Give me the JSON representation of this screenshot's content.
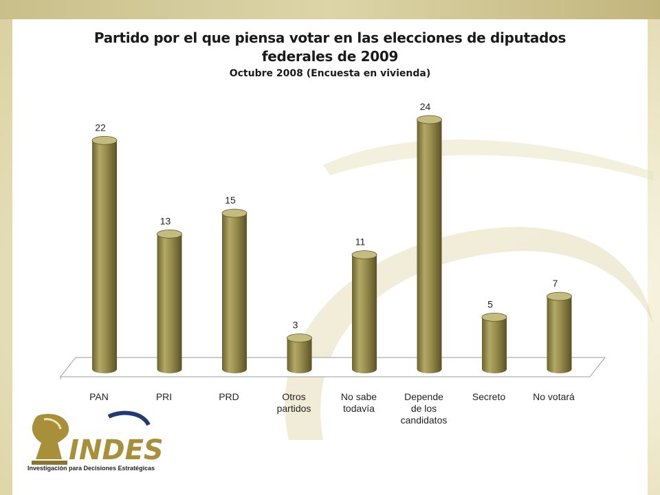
{
  "header": {
    "title": "Partido por el que piensa votar en las elecciones de diputados federales de 2009",
    "subtitle": "Octubre 2008 (Encuesta en vivienda)"
  },
  "logo": {
    "name": "INDES",
    "tagline": "Investigación para Decisiones Estratégicas"
  },
  "colors": {
    "bar": "#9a8f4e",
    "bar_dark": "#5d5427",
    "bar_light": "#c4bb7e",
    "logo_gold": "#a8903a",
    "logo_blue": "#1f3b73"
  },
  "chart_data": {
    "type": "bar",
    "categories": [
      [
        "PAN"
      ],
      [
        "PRI"
      ],
      [
        "PRD"
      ],
      [
        "Otros",
        "partidos"
      ],
      [
        "No sabe",
        "todavía"
      ],
      [
        "Depende",
        "de los",
        "candidatos"
      ],
      [
        "Secreto"
      ],
      [
        "No votará"
      ]
    ],
    "values": [
      22,
      13,
      15,
      3,
      11,
      24,
      5,
      7
    ],
    "ylim": [
      0,
      24
    ],
    "grid": false,
    "legend": "none"
  }
}
